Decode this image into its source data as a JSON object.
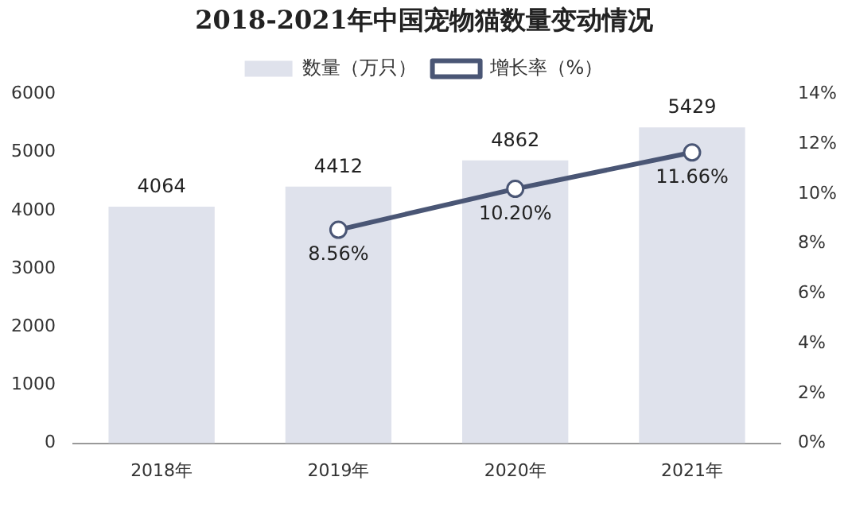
{
  "chart_data": {
    "type": "bar",
    "title": "2018-2021年中国宠物猫数量变动情况",
    "categories": [
      "2018年",
      "2019年",
      "2020年",
      "2021年"
    ],
    "series": [
      {
        "name": "数量（万只）",
        "color": "#dfe2ec",
        "values": [
          4064,
          4412,
          4862,
          5429
        ],
        "value_labels": [
          "4064",
          "4412",
          "4862",
          "5429"
        ]
      },
      {
        "name": "增长率（%）",
        "type": "line",
        "axis": "y2",
        "color": "#4a5675",
        "values": [
          null,
          8.56,
          10.2,
          11.66
        ],
        "value_labels": [
          null,
          "8.56%",
          "10.20%",
          "11.66%"
        ]
      }
    ],
    "ylim": [
      0,
      6000
    ],
    "yticks": [
      0,
      1000,
      2000,
      3000,
      4000,
      5000,
      6000
    ],
    "y2lim": [
      0,
      14
    ],
    "y2ticks": [
      {
        "value": 0,
        "label": "0%"
      },
      {
        "value": 2,
        "label": "2%"
      },
      {
        "value": 4,
        "label": "4%"
      },
      {
        "value": 6,
        "label": "6%"
      },
      {
        "value": 8,
        "label": "8%"
      },
      {
        "value": 10,
        "label": "10%"
      },
      {
        "value": 12,
        "label": "12%"
      },
      {
        "value": 14,
        "label": "14%"
      }
    ],
    "legend": "top",
    "grid": false,
    "marker": "circle",
    "line_style": "solid"
  }
}
